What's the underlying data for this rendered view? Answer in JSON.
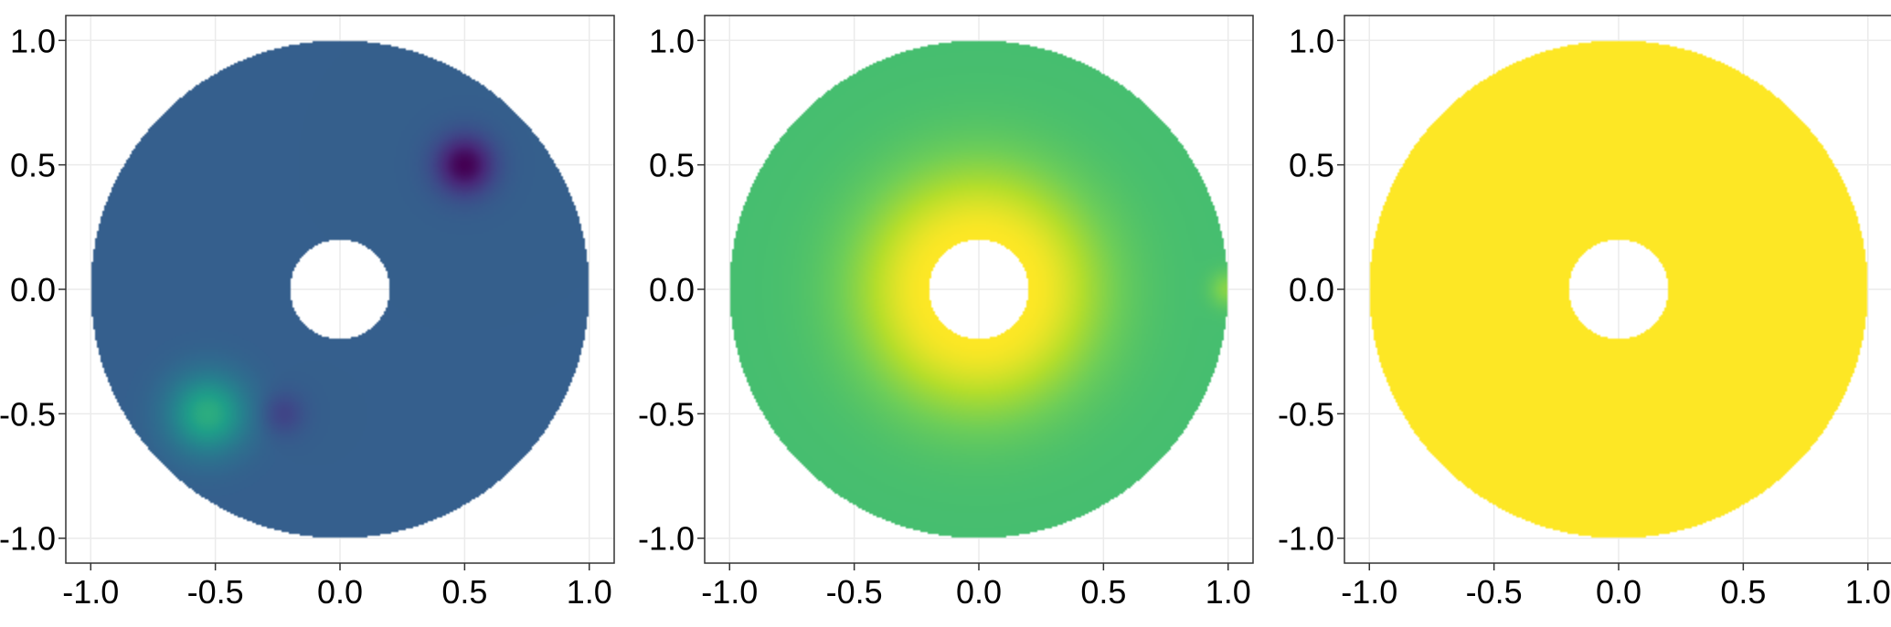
{
  "chart_data": [
    {
      "type": "heatmap",
      "title": "",
      "xlabel": "",
      "ylabel": "",
      "xlim": [
        -1.1,
        1.1
      ],
      "ylim": [
        -1.1,
        1.1
      ],
      "xticks": [
        "-1.0",
        "-0.5",
        "0.0",
        "0.5",
        "1.0"
      ],
      "yticks": [
        "1.0",
        "0.5",
        "0.0",
        "-0.5",
        "-1.0"
      ],
      "grid": true,
      "domain": {
        "shape": "annulus",
        "outer_radius": 1.0,
        "inner_radius": 0.2,
        "center": [
          0.0,
          0.0
        ]
      },
      "colormap": "viridis",
      "base_level": 0.3,
      "features": [
        {
          "kind": "gaussian",
          "x": 0.5,
          "y": 0.5,
          "amplitude": -0.3,
          "sigma": 0.08
        },
        {
          "kind": "gaussian",
          "x": -0.53,
          "y": -0.5,
          "amplitude": 0.32,
          "sigma": 0.11
        },
        {
          "kind": "gaussian",
          "x": -0.23,
          "y": -0.5,
          "amplitude": -0.1,
          "sigma": 0.06
        }
      ]
    },
    {
      "type": "heatmap",
      "title": "",
      "xlabel": "",
      "ylabel": "",
      "xlim": [
        -1.1,
        1.1
      ],
      "ylim": [
        -1.1,
        1.1
      ],
      "xticks": [
        "-1.0",
        "-0.5",
        "0.0",
        "0.5",
        "1.0"
      ],
      "yticks": [
        "1.0",
        "0.5",
        "0.0",
        "-0.5",
        "-1.0"
      ],
      "grid": true,
      "domain": {
        "shape": "annulus",
        "outer_radius": 1.0,
        "inner_radius": 0.2,
        "center": [
          0.0,
          0.0
        ]
      },
      "colormap": "viridis",
      "base_level": 0.7,
      "features": [
        {
          "kind": "radial",
          "amplitude": 0.3,
          "sigma": 0.22
        },
        {
          "kind": "gaussian",
          "x": 1.0,
          "y": 0.0,
          "amplitude": 0.12,
          "sigma": 0.05
        }
      ]
    },
    {
      "type": "heatmap",
      "title": "",
      "xlabel": "",
      "ylabel": "",
      "xlim": [
        -1.1,
        1.1
      ],
      "ylim": [
        -1.1,
        1.1
      ],
      "xticks": [
        "-1.0",
        "-0.5",
        "0.0",
        "0.5",
        "1.0"
      ],
      "yticks": [
        "1.0",
        "0.5",
        "0.0",
        "-0.5",
        "-1.0"
      ],
      "grid": true,
      "domain": {
        "shape": "annulus",
        "outer_radius": 1.0,
        "inner_radius": 0.2,
        "center": [
          0.0,
          0.0
        ]
      },
      "colormap": "viridis",
      "base_level": 1.0,
      "features": []
    }
  ]
}
